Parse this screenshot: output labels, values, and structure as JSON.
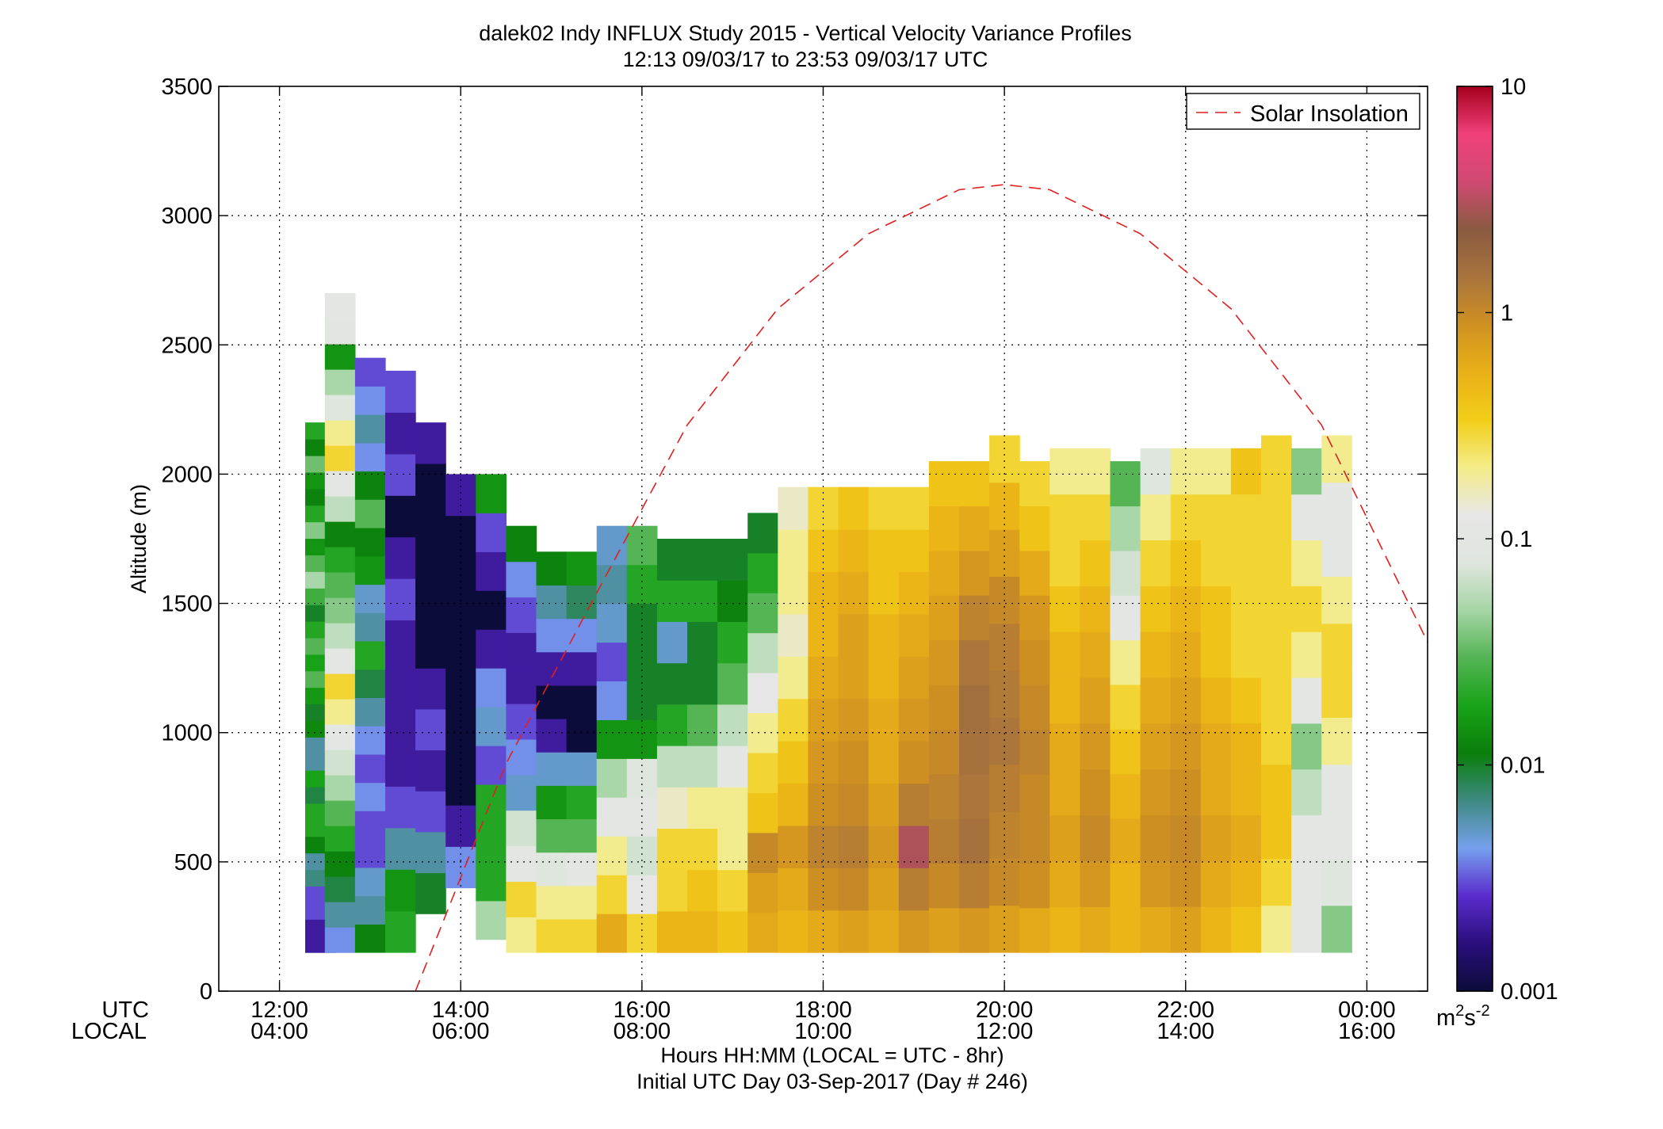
{
  "chart_data": {
    "type": "heatmap",
    "title": "dalek02 Indy INFLUX Study 2015 - Vertical Velocity Variance Profiles",
    "subtitle": "12:13 09/03/17 to 23:53 09/03/17  UTC",
    "ylabel": "Altitude (m)",
    "xlabel_1": "Hours HH:MM  (LOCAL = UTC - 8hr)",
    "xlabel_2": "Initial UTC Day 03-Sep-2017 (Day # 246)",
    "x_row_labels": [
      "UTC",
      "LOCAL"
    ],
    "x_ticks": [
      {
        "hour": 12,
        "utc": "12:00",
        "local": "04:00"
      },
      {
        "hour": 14,
        "utc": "14:00",
        "local": "06:00"
      },
      {
        "hour": 16,
        "utc": "16:00",
        "local": "08:00"
      },
      {
        "hour": 18,
        "utc": "18:00",
        "local": "10:00"
      },
      {
        "hour": 20,
        "utc": "20:00",
        "local": "12:00"
      },
      {
        "hour": 22,
        "utc": "22:00",
        "local": "14:00"
      },
      {
        "hour": 24,
        "utc": "00:00",
        "local": "16:00"
      }
    ],
    "y_ticks": [
      0,
      500,
      1000,
      1500,
      2000,
      2500,
      3000,
      3500
    ],
    "xlim_hours": [
      11.33,
      24.67
    ],
    "ylim": [
      0,
      3500
    ],
    "grid": true,
    "colorbar": {
      "scale": "log",
      "range": [
        0.001,
        10
      ],
      "unit": "m²s⁻²",
      "unit_base": "m",
      "unit_sup1": "2",
      "unit_mid": "s",
      "unit_sup2": "-2",
      "tick_labels": [
        "0.001",
        "0.01",
        "0.1",
        "1",
        "10"
      ],
      "tick_values": [
        0.001,
        0.01,
        0.1,
        1,
        10
      ],
      "colors": [
        "#0c0c3a",
        "#2a0e7c",
        "#5a2ccc",
        "#76a0ee",
        "#3e8a82",
        "#0a7e0a",
        "#19a319",
        "#54b454",
        "#a6d6a6",
        "#dfe6de",
        "#e6e6e6",
        "#f4ec88",
        "#f2ce18",
        "#eab018",
        "#cf9021",
        "#a8743d",
        "#8a5a40",
        "#d04a72",
        "#f0407a",
        "#a5001c"
      ]
    },
    "legend": {
      "entries": [
        "Solar Insolation"
      ],
      "placement": "top-right",
      "color": "#e02020"
    },
    "solar_insolation_curve": {
      "peak_hour": 20.0,
      "peak_altitude_m": 3120,
      "x_hours": [
        13.5,
        14.5,
        15.5,
        16.5,
        17.5,
        18.5,
        19.5,
        20.0,
        20.5,
        21.5,
        22.5,
        23.5,
        24.67
      ],
      "y_altitude_m": [
        0,
        880,
        1540,
        2190,
        2640,
        2930,
        3100,
        3120,
        3100,
        2930,
        2640,
        2190,
        1350
      ]
    },
    "range_gate_m": 50,
    "series": [
      {
        "utc": "12:27",
        "gates": "150-2200",
        "variance_m2s-2": [
          0.002,
          0.002,
          0.003,
          0.003,
          0.007,
          0.006,
          0.012,
          0.02,
          0.02,
          0.009,
          0.018,
          0.006,
          0.006,
          0.013,
          0.01,
          0.016,
          0.03,
          0.018,
          0.03,
          0.02,
          0.01,
          0.025,
          0.05,
          0.03,
          0.015,
          0.04,
          0.02,
          0.012,
          0.015,
          0.035,
          0.012,
          0.02
        ]
      },
      {
        "utc": "12:40",
        "gates": "150-2700",
        "variance_m2s-2": [
          0.004,
          0.006,
          0.009,
          0.012,
          0.02,
          0.03,
          0.05,
          0.07,
          0.1,
          0.2,
          0.3,
          0.1,
          0.06,
          0.04,
          0.03,
          0.02,
          0.012,
          0.06,
          0.1,
          0.3,
          0.2,
          0.08,
          0.05,
          0.015,
          0.09,
          0.1
        ]
      },
      {
        "utc": "13:00",
        "gates": "150-2450",
        "variance_m2s-2": [
          0.012,
          0.006,
          0.005,
          0.003,
          0.003,
          0.004,
          0.003,
          0.004,
          0.006,
          0.009,
          0.02,
          0.006,
          0.005,
          0.015,
          0.012,
          0.03,
          0.012,
          0.004,
          0.006,
          0.004,
          0.003
        ]
      },
      {
        "utc": "13:20",
        "gates": "150-2400",
        "variance_m2s-2": [
          0.02,
          0.015,
          0.006,
          0.003,
          0.002,
          0.002,
          0.002,
          0.002,
          0.003,
          0.002,
          0.001,
          0.003,
          0.002,
          0.003
        ]
      },
      {
        "utc": "13:40",
        "gates": "300-2200",
        "variance_m2s-2": [
          0.01,
          0.006,
          0.003,
          0.002,
          0.003,
          0.002,
          0.001,
          0.001,
          0.001,
          0.001,
          0.001,
          0.002
        ]
      },
      {
        "utc": "14:00",
        "gates": "400-2000",
        "variance_m2s-2": [
          0.004,
          0.002,
          0.001,
          0.001,
          0.001,
          0.001,
          0.001,
          0.001,
          0.001,
          0.002
        ]
      },
      {
        "utc": "14:20",
        "gates": "200-2000",
        "variance_m2s-2": [
          0.05,
          0.02,
          0.02,
          0.02,
          0.003,
          0.005,
          0.004,
          0.002,
          0.001,
          0.002,
          0.003,
          0.015
        ]
      },
      {
        "utc": "14:40",
        "gates": "150-1800",
        "variance_m2s-2": [
          0.2,
          0.3,
          0.1,
          0.07,
          0.005,
          0.004,
          0.003,
          0.002,
          0.002,
          0.003,
          0.004,
          0.012
        ]
      },
      {
        "utc": "15:00",
        "gates": "150-1700",
        "variance_m2s-2": [
          0.3,
          0.2,
          0.08,
          0.03,
          0.015,
          0.005,
          0.002,
          0.001,
          0.002,
          0.004,
          0.006,
          0.012
        ]
      },
      {
        "utc": "15:20",
        "gates": "150-1700",
        "variance_m2s-2": [
          0.3,
          0.2,
          0.1,
          0.03,
          0.02,
          0.005,
          0.001,
          0.001,
          0.002,
          0.004,
          0.008,
          0.015
        ]
      },
      {
        "utc": "15:40",
        "gates": "150-1800",
        "variance_m2s-2": [
          0.6,
          0.3,
          0.2,
          0.1,
          0.05,
          0.015,
          0.004,
          0.003,
          0.005,
          0.006,
          0.005
        ]
      },
      {
        "utc": "16:00",
        "gates": "150-1800",
        "variance_m2s-2": [
          0.3,
          0.12,
          0.07,
          0.1,
          0.08,
          0.015,
          0.01,
          0.01,
          0.01,
          0.02,
          0.03
        ]
      },
      {
        "utc": "16:20",
        "gates": "150-1750",
        "variance_m2s-2": [
          0.5,
          0.3,
          0.3,
          0.15,
          0.06,
          0.02,
          0.01,
          0.005,
          0.02,
          0.01
        ]
      },
      {
        "utc": "16:40",
        "gates": "150-1750",
        "variance_m2s-2": [
          0.5,
          0.4,
          0.3,
          0.2,
          0.06,
          0.03,
          0.01,
          0.01,
          0.02,
          0.01
        ]
      },
      {
        "utc": "17:00",
        "gates": "150-1750",
        "variance_m2s-2": [
          0.4,
          0.3,
          0.2,
          0.2,
          0.1,
          0.06,
          0.03,
          0.02,
          0.012,
          0.01
        ]
      },
      {
        "utc": "17:20",
        "gates": "150-1850",
        "variance_m2s-2": [
          0.6,
          0.7,
          1.0,
          0.4,
          0.3,
          0.2,
          0.12,
          0.06,
          0.03,
          0.02,
          0.01
        ]
      },
      {
        "utc": "17:40",
        "gates": "150-1950",
        "variance_m2s-2": [
          0.5,
          0.6,
          0.8,
          0.5,
          0.4,
          0.3,
          0.2,
          0.15,
          0.2,
          0.2,
          0.15
        ]
      },
      {
        "utc": "18:00",
        "gates": "150-1950",
        "variance_m2s-2": [
          0.6,
          0.9,
          1.1,
          0.9,
          0.8,
          0.7,
          0.6,
          0.5,
          0.5,
          0.4,
          0.3
        ]
      },
      {
        "utc": "18:20",
        "gates": "150-1950",
        "variance_m2s-2": [
          0.7,
          1.0,
          1.2,
          1.0,
          0.9,
          0.8,
          0.7,
          0.7,
          0.6,
          0.5,
          0.4
        ]
      },
      {
        "utc": "18:40",
        "gates": "150-1950",
        "variance_m2s-2": [
          0.6,
          0.7,
          0.8,
          0.7,
          0.6,
          0.6,
          0.5,
          0.5,
          0.4,
          0.4,
          0.3
        ]
      },
      {
        "utc": "19:00",
        "gates": "150-1950",
        "variance_m2s-2": [
          0.8,
          1.2,
          3.0,
          1.2,
          0.9,
          0.8,
          0.7,
          0.6,
          0.5,
          0.4,
          0.3
        ]
      },
      {
        "utc": "19:20",
        "gates": "150-2050",
        "variance_m2s-2": [
          0.7,
          1.0,
          1.2,
          1.1,
          1.0,
          0.9,
          0.8,
          0.7,
          0.6,
          0.5,
          0.4
        ]
      },
      {
        "utc": "19:40",
        "gates": "150-2050",
        "variance_m2s-2": [
          0.8,
          1.2,
          1.5,
          1.4,
          1.5,
          1.6,
          1.4,
          1.1,
          0.8,
          0.6,
          0.4
        ]
      },
      {
        "utc": "20:00",
        "gates": "150-2150",
        "variance_m2s-2": [
          0.7,
          1.0,
          1.1,
          1.2,
          1.4,
          1.3,
          1.2,
          1.0,
          0.7,
          0.5,
          0.3
        ]
      },
      {
        "utc": "20:20",
        "gates": "150-2050",
        "variance_m2s-2": [
          0.6,
          0.9,
          1.0,
          1.0,
          1.1,
          1.0,
          0.9,
          0.8,
          0.6,
          0.4,
          0.3
        ]
      },
      {
        "utc": "20:40",
        "gates": "150-2100",
        "variance_m2s-2": [
          0.5,
          0.6,
          0.7,
          0.6,
          0.6,
          0.5,
          0.5,
          0.4,
          0.3,
          0.3,
          0.2
        ]
      },
      {
        "utc": "21:00",
        "gates": "150-2100",
        "variance_m2s-2": [
          0.6,
          0.8,
          1.0,
          0.9,
          0.8,
          0.7,
          0.6,
          0.5,
          0.4,
          0.3,
          0.2
        ]
      },
      {
        "utc": "21:20",
        "gates": "150-2050",
        "variance_m2s-2": [
          0.5,
          0.5,
          0.6,
          0.5,
          0.4,
          0.3,
          0.2,
          0.1,
          0.07,
          0.05,
          0.03
        ]
      },
      {
        "utc": "21:40",
        "gates": "150-2100",
        "variance_m2s-2": [
          0.6,
          0.8,
          0.9,
          0.8,
          0.7,
          0.6,
          0.5,
          0.4,
          0.3,
          0.2,
          0.08
        ]
      },
      {
        "utc": "22:00",
        "gates": "150-2100",
        "variance_m2s-2": [
          0.7,
          0.9,
          1.0,
          0.9,
          0.8,
          0.7,
          0.6,
          0.5,
          0.4,
          0.3,
          0.2
        ]
      },
      {
        "utc": "22:20",
        "gates": "150-2100",
        "variance_m2s-2": [
          0.5,
          0.6,
          0.7,
          0.6,
          0.6,
          0.5,
          0.4,
          0.4,
          0.3,
          0.3,
          0.2
        ]
      },
      {
        "utc": "22:40",
        "gates": "150-2100",
        "variance_m2s-2": [
          0.4,
          0.5,
          0.6,
          0.5,
          0.5,
          0.4,
          0.3,
          0.3,
          0.3,
          0.3,
          0.4
        ]
      },
      {
        "utc": "23:00",
        "gates": "150-2150",
        "variance_m2s-2": [
          0.2,
          0.3,
          0.4,
          0.4,
          0.3,
          0.3,
          0.3,
          0.3,
          0.3,
          0.3,
          0.3
        ]
      },
      {
        "utc": "23:20",
        "gates": "150-2100",
        "variance_m2s-2": [
          0.1,
          0.1,
          0.1,
          0.06,
          0.04,
          0.1,
          0.2,
          0.3,
          0.2,
          0.1,
          0.04
        ]
      },
      {
        "utc": "23:40",
        "gates": "150-2150",
        "variance_m2s-2": [
          0.04,
          0.08,
          0.1,
          0.1,
          0.2,
          0.3,
          0.3,
          0.2,
          0.1,
          0.1,
          0.2
        ]
      }
    ]
  }
}
